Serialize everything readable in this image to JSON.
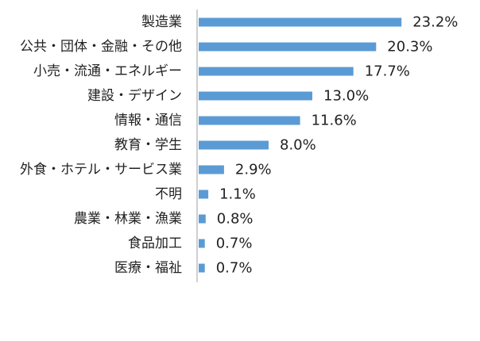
{
  "chart_data": {
    "type": "bar",
    "orientation": "horizontal",
    "categories": [
      "製造業",
      "公共・団体・金融・その他",
      "小売・流通・エネルギー",
      "建設・デザイン",
      "情報・通信",
      "教育・学生",
      "外食・ホテル・サービス業",
      "不明",
      "農業・林業・漁業",
      "食品加工",
      "医療・福祉"
    ],
    "values": [
      23.2,
      20.3,
      17.7,
      13.0,
      11.6,
      8.0,
      2.9,
      1.1,
      0.8,
      0.7,
      0.7
    ],
    "value_labels": [
      "23.2%",
      "20.3%",
      "17.7%",
      "13.0%",
      "11.6%",
      "8.0%",
      "2.9%",
      "1.1%",
      "0.8%",
      "0.7%",
      "0.7%"
    ],
    "xlim": [
      0,
      25
    ],
    "title": "",
    "xlabel": "",
    "ylabel": "",
    "grid": false,
    "legend": "none",
    "bar_color": "#5b9bd5",
    "axis_color": "#bfbfbf"
  }
}
